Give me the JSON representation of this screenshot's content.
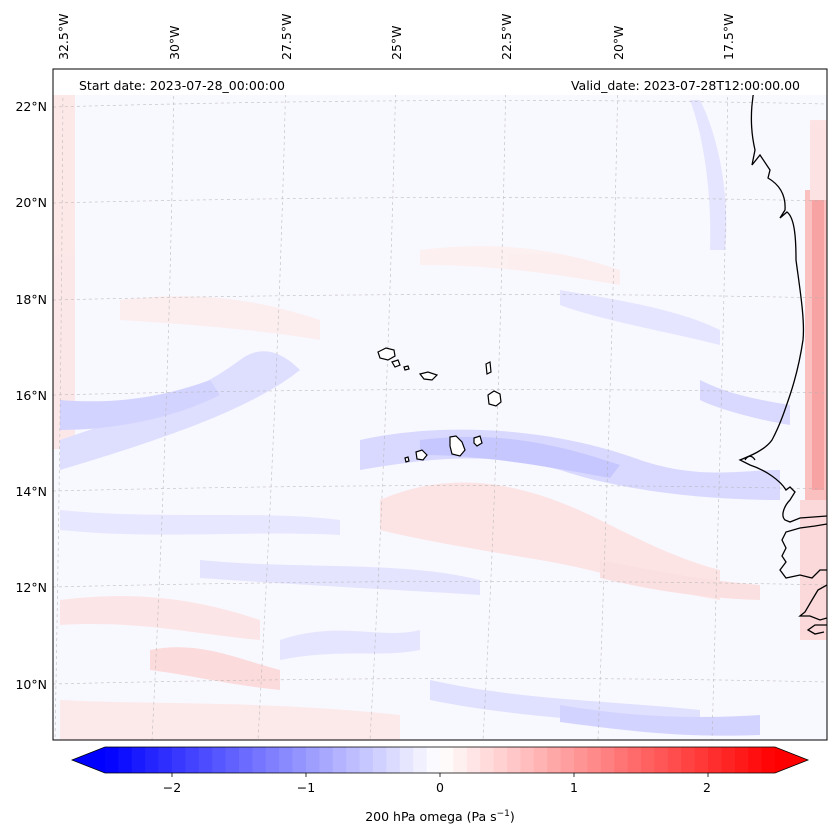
{
  "header": {
    "start_date": "Start date: 2023-07-28_00:00:00",
    "valid_date": "Valid_date: 2023-07-28T12:00:00.00"
  },
  "axes": {
    "lon_labels": [
      "32.5°W",
      "30°W",
      "27.5°W",
      "25°W",
      "22.5°W",
      "20°W",
      "17.5°W"
    ],
    "lon_values": [
      -32.5,
      -30,
      -27.5,
      -25,
      -22.5,
      -20,
      -17.5
    ],
    "lat_labels": [
      "22°N",
      "20°N",
      "18°N",
      "16°N",
      "14°N",
      "12°N",
      "10°N"
    ],
    "lat_values": [
      22,
      20,
      18,
      16,
      14,
      12,
      10
    ],
    "lon_range": [
      -32.6,
      -15.3
    ],
    "lat_range": [
      8.9,
      22.8
    ]
  },
  "colorbar": {
    "label": "200 hPa omega (Pa s",
    "label_unit_exp": "−1",
    "label_end": ")",
    "ticks": [
      "−2",
      "−1",
      "0",
      "1",
      "2"
    ],
    "tick_values": [
      -2,
      -1,
      0,
      1,
      2
    ],
    "vmin": -2.5,
    "vmax": 2.5,
    "color_low": "#0000ff",
    "color_mid": "#ffffff",
    "color_high": "#ff0000"
  },
  "colors": {
    "coastline": "#000000",
    "gridline": "#b0b0b0",
    "frame": "#000000"
  }
}
